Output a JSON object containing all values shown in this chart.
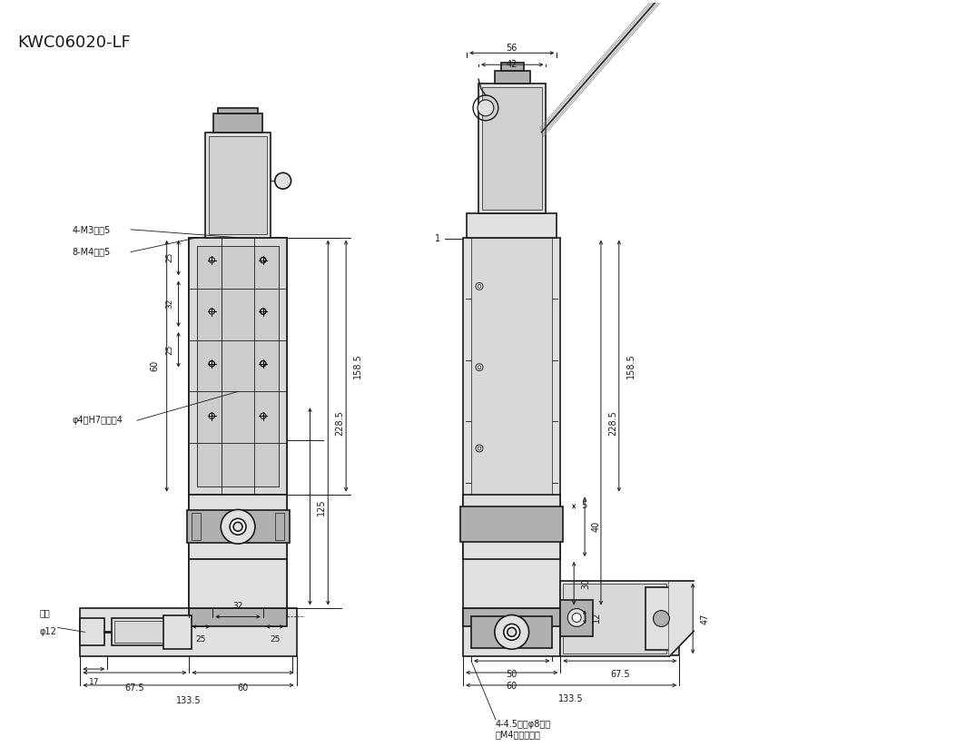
{
  "title": "KWC06020-LF",
  "bg_color": "#ffffff",
  "line_color": "#1a1a1a",
  "gray_fill": "#c8c8c8",
  "light_gray": "#e0e0e0",
  "mid_gray": "#b0b0b0",
  "dark_gray": "#808080",
  "annotations": {
    "label_4M3": "4-M3深剆5",
    "label_8M4": "8-M4深剆5",
    "label_phi4": "φ4（H7）深剆4",
    "label_knob": "旋鈕",
    "label_phi12": "φ12",
    "label_holes": "4-4.5通孔φ8沉孔\n（M4用螺栓孔）",
    "dim_56": "56",
    "dim_42": "42",
    "dim_1585": "158.5",
    "dim_2285": "228.5",
    "dim_1": "1",
    "dim_5": "5",
    "dim_125": "125",
    "dim_40": "40",
    "dim_30": "30",
    "dim_12": "12",
    "dim_47": "47",
    "dim_50": "50",
    "dim_60r": "60",
    "dim_675r": "67.5",
    "dim_1335r": "133.5",
    "dim_25a": "25",
    "dim_25b": "25",
    "dim_32b": "32",
    "dim_60l": "60",
    "dim_675l": "67.5",
    "dim_1335l": "133.5",
    "dim_25c": "25",
    "dim_25d": "25",
    "dim_32l": "32",
    "dim_60left": "60",
    "dim_25left1": "25",
    "dim_32left": "32",
    "dim_25left2": "25",
    "dim_17": "17"
  }
}
